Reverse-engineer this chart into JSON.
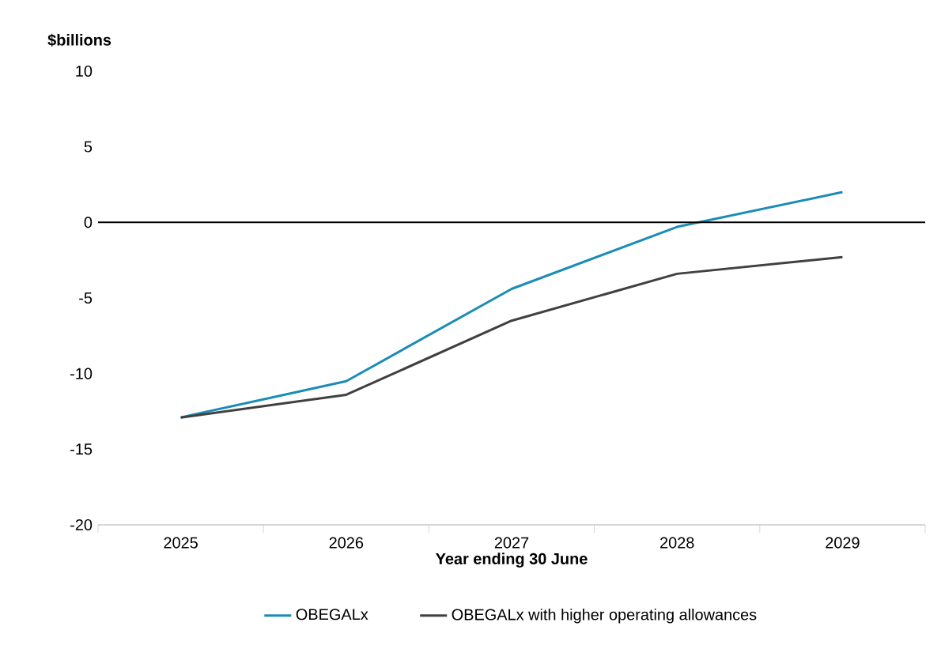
{
  "chart_data": {
    "type": "line",
    "ylabel": "$billions",
    "xlabel": "Year ending 30 June",
    "categories": [
      "2025",
      "2026",
      "2027",
      "2028",
      "2029"
    ],
    "series": [
      {
        "name": "OBEGALx",
        "color": "#1b8cb6",
        "values": [
          -12.9,
          -10.5,
          -4.4,
          -0.3,
          2.0
        ]
      },
      {
        "name": "OBEGALx with higher operating allowances",
        "color": "#404040",
        "values": [
          -12.9,
          -11.4,
          -6.5,
          -3.4,
          -2.3
        ]
      }
    ],
    "ylim": [
      -20,
      10
    ],
    "yticks": [
      -20,
      -15,
      -10,
      -5,
      0,
      5,
      10
    ],
    "ref_lines": [
      {
        "axis": "y",
        "value": 0,
        "color": "#000000"
      }
    ],
    "legend": "bottom",
    "marker": "none",
    "line_style": "solid",
    "grid": false
  }
}
